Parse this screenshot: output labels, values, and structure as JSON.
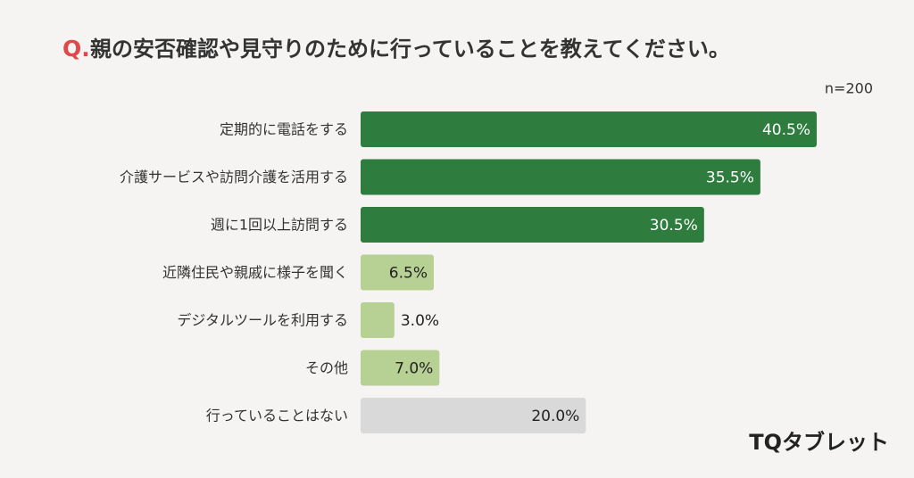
{
  "chart_data": {
    "type": "bar",
    "orientation": "horizontal",
    "title_marker": "Q.",
    "title": "親の安否確認や見守りのために行っていることを教えてください。",
    "note": "n=200",
    "brand": "TQタブレット",
    "categories": [
      "定期的に電話をする",
      "介護サービスや訪問介護を活用する",
      "週に1回以上訪問する",
      "近隣住民や親戚に様子を聞く",
      "デジタルツールを利用する",
      "その他",
      "行っていることはない"
    ],
    "values": [
      40.5,
      35.5,
      30.5,
      6.5,
      3.0,
      7.0,
      20.0
    ],
    "value_labels": [
      "40.5%",
      "35.5%",
      "30.5%",
      "6.5%",
      "3.0%",
      "7.0%",
      "20.0%"
    ],
    "colors": [
      "#2e7d3e",
      "#2e7d3e",
      "#2e7d3e",
      "#b7d094",
      "#b7d094",
      "#b7d094",
      "#d9d9d9"
    ],
    "xlim": [
      0,
      40.5
    ]
  }
}
